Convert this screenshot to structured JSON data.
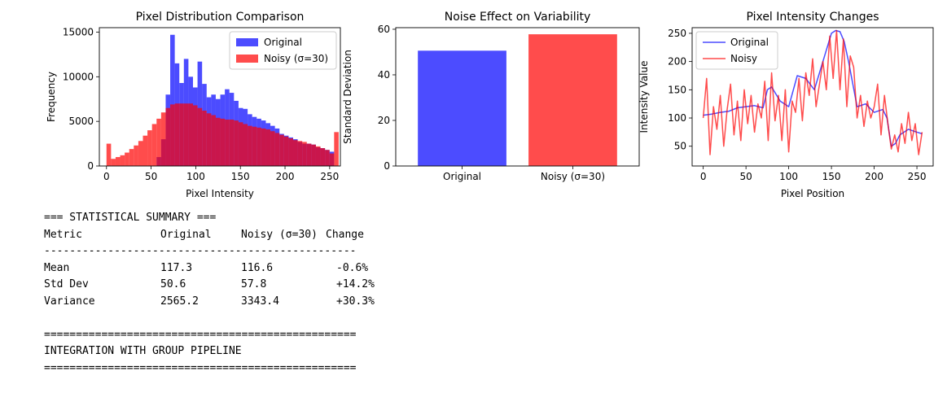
{
  "chart_data": [
    {
      "type": "bar",
      "title": "Pixel Distribution Comparison",
      "xlabel": "Pixel Intensity",
      "ylabel": "Frequency",
      "xlim": [
        -8,
        262
      ],
      "ylim": [
        0,
        15500
      ],
      "xticks": [
        "0",
        "50",
        "100",
        "150",
        "200",
        "250"
      ],
      "yticks": [
        "0",
        "5000",
        "10000",
        "15000"
      ],
      "legend_position": "top-right",
      "bin_edges_start": 0,
      "bin_width": 5.1,
      "series": [
        {
          "name": "Original",
          "color": "#0000ff",
          "alpha": 0.7,
          "values": [
            0,
            0,
            0,
            0,
            0,
            0,
            0,
            0,
            0,
            0,
            0,
            1000,
            3000,
            8000,
            14700,
            11500,
            9300,
            12000,
            10000,
            8800,
            11700,
            9200,
            7700,
            8000,
            7500,
            8000,
            8600,
            8200,
            7300,
            6500,
            6400,
            5800,
            5500,
            5300,
            5100,
            4800,
            4500,
            4200,
            3600,
            3400,
            3200,
            3000,
            2700,
            2500,
            2500,
            2400,
            2100,
            2000,
            1800,
            1600,
            0
          ]
        },
        {
          "name": "Noisy (σ=30)",
          "color": "#ff0000",
          "alpha": 0.7,
          "values": [
            2500,
            800,
            1000,
            1200,
            1500,
            1900,
            2300,
            2800,
            3400,
            4000,
            4700,
            5300,
            6000,
            6500,
            6900,
            7000,
            7000,
            7000,
            7000,
            6800,
            6500,
            6200,
            5900,
            5700,
            5400,
            5300,
            5200,
            5200,
            5100,
            4900,
            4700,
            4500,
            4400,
            4300,
            4200,
            4100,
            3900,
            3700,
            3500,
            3300,
            3100,
            2900,
            2800,
            2700,
            2500,
            2400,
            2200,
            2000,
            1800,
            1400,
            3800
          ]
        }
      ]
    },
    {
      "type": "bar",
      "title": "Noise Effect on Variability",
      "ylabel": "Standard Deviation",
      "categories": [
        "Original",
        "Noisy (σ=30)"
      ],
      "values": [
        50.6,
        57.8
      ],
      "colors": [
        "#0000ff",
        "#ff0000"
      ],
      "ylim": [
        0,
        60.7
      ],
      "yticks": [
        "0",
        "20",
        "40",
        "60"
      ]
    },
    {
      "type": "line",
      "title": "Pixel Intensity Changes",
      "xlabel": "Pixel Position",
      "ylabel": "Intensity Value",
      "xlim": [
        -13,
        269
      ],
      "ylim": [
        15,
        260
      ],
      "xticks": [
        "0",
        "50",
        "100",
        "150",
        "200",
        "250"
      ],
      "yticks": [
        "50",
        "100",
        "150",
        "200",
        "250"
      ],
      "legend_position": "top-left",
      "series": [
        {
          "name": "Original",
          "color": "#0000ff",
          "x": [
            0,
            10,
            20,
            30,
            40,
            50,
            60,
            70,
            75,
            80,
            90,
            100,
            110,
            120,
            130,
            140,
            150,
            155,
            160,
            165,
            170,
            180,
            190,
            200,
            210,
            215,
            220,
            225,
            230,
            240,
            250,
            256
          ],
          "y": [
            105,
            107,
            110,
            112,
            118,
            120,
            122,
            118,
            150,
            155,
            130,
            120,
            175,
            170,
            150,
            200,
            250,
            255,
            253,
            235,
            200,
            120,
            125,
            110,
            115,
            100,
            50,
            55,
            70,
            80,
            75,
            72
          ]
        },
        {
          "name": "Noisy",
          "color": "#ff0000",
          "x": [
            0,
            4,
            8,
            12,
            16,
            20,
            24,
            28,
            32,
            36,
            40,
            44,
            48,
            52,
            56,
            60,
            64,
            68,
            72,
            76,
            80,
            84,
            88,
            92,
            96,
            100,
            104,
            108,
            112,
            116,
            120,
            124,
            128,
            132,
            136,
            140,
            144,
            148,
            152,
            156,
            160,
            164,
            168,
            172,
            176,
            180,
            184,
            188,
            192,
            196,
            200,
            204,
            208,
            212,
            216,
            220,
            224,
            228,
            232,
            236,
            240,
            244,
            248,
            252,
            256
          ],
          "y": [
            100,
            170,
            35,
            120,
            80,
            140,
            50,
            115,
            160,
            70,
            130,
            60,
            150,
            90,
            140,
            75,
            125,
            100,
            165,
            60,
            180,
            95,
            140,
            60,
            150,
            40,
            130,
            110,
            170,
            95,
            180,
            140,
            205,
            120,
            160,
            200,
            150,
            245,
            170,
            255,
            150,
            240,
            120,
            210,
            190,
            100,
            140,
            85,
            130,
            100,
            120,
            160,
            70,
            140,
            90,
            45,
            70,
            40,
            90,
            55,
            110,
            60,
            90,
            35,
            75
          ]
        }
      ]
    }
  ],
  "summary": {
    "header": "=== STATISTICAL SUMMARY ===",
    "columns": [
      "Metric",
      "Original",
      "Noisy (σ=30)",
      "Change"
    ],
    "rule": "-------------------------------------------------",
    "rows": [
      [
        "Mean",
        "117.3",
        "116.6",
        "-0.6%"
      ],
      [
        "Std Dev",
        "50.6",
        "57.8",
        "+14.2%"
      ],
      [
        "Variance",
        "2565.2",
        "3343.4",
        "+30.3%"
      ]
    ],
    "separator": "=================================================",
    "footer": "INTEGRATION WITH GROUP PIPELINE"
  }
}
